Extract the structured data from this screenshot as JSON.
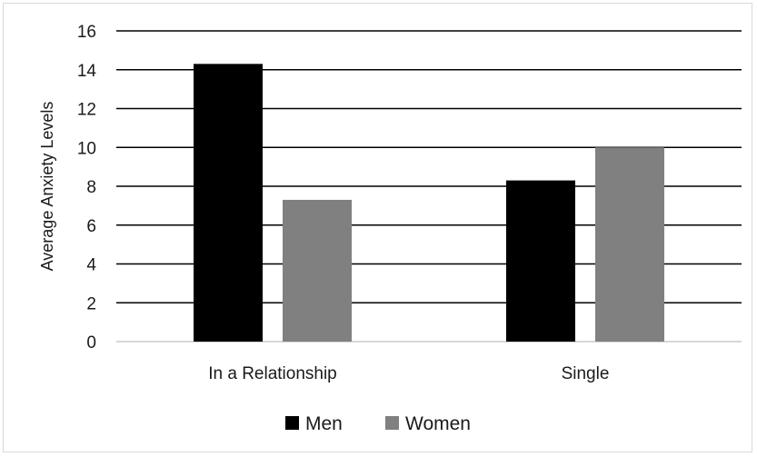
{
  "chart_data": {
    "type": "bar",
    "title": "",
    "xlabel": "",
    "ylabel": "Average Anxiety Levels",
    "ylim": [
      0,
      16
    ],
    "yticks": [
      0,
      2,
      4,
      6,
      8,
      10,
      12,
      14,
      16
    ],
    "grid": true,
    "legend_position": "bottom",
    "categories": [
      "In a Relationship",
      "Single"
    ],
    "series": [
      {
        "name": "Men",
        "color": "#000000",
        "values": [
          14.3,
          8.3
        ]
      },
      {
        "name": "Women",
        "color": "#808080",
        "values": [
          7.3,
          10.0
        ]
      }
    ]
  }
}
